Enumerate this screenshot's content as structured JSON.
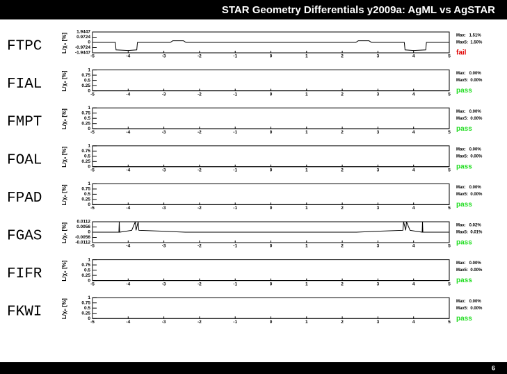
{
  "header": {
    "title": "STAR Geometry Differentials y2009a: AgML vs AgSTAR",
    "page": "6"
  },
  "chart_data": [
    {
      "type": "line",
      "title": "FTPC",
      "ylabel": "L/χ₀ [%]",
      "color": "#000000",
      "x": [
        -5,
        -4.36,
        -4.34,
        -4.0,
        -3.76,
        -3.74,
        -2.82,
        -2.75,
        -2.65,
        -2.55,
        -2.45,
        -2.38,
        2.38,
        2.45,
        2.55,
        2.65,
        2.75,
        2.82,
        3.74,
        3.76,
        4.0,
        4.34,
        4.36,
        5
      ],
      "values": [
        0,
        0,
        -1.4,
        -1.5,
        -1.4,
        0,
        0,
        0.3,
        0.3,
        0.3,
        0.3,
        0,
        0,
        0.3,
        0.3,
        0.3,
        0.3,
        0,
        0,
        -1.4,
        -1.5,
        -1.4,
        0,
        0
      ],
      "xlim": [
        -5,
        5
      ],
      "xticks": [
        -5,
        -4,
        -3,
        -2,
        -1,
        0,
        1,
        2,
        3,
        4,
        5
      ],
      "ylim": [
        -1.9447,
        1.9447
      ],
      "yticks": [
        -1.9447,
        -0.9724,
        0,
        0.9724,
        1.9447
      ],
      "max_text": "Max:   1.51%",
      "max5_text": "Max5:  1.50%",
      "status": "fail",
      "status_color": "#e00000"
    },
    {
      "type": "line",
      "title": "FIAL",
      "ylabel": "L/χ₀ [%]",
      "color": "#000000",
      "x": [
        -5,
        5
      ],
      "values": [
        0,
        0
      ],
      "xlim": [
        -5,
        5
      ],
      "xticks": [
        -5,
        -4,
        -3,
        -2,
        -1,
        0,
        1,
        2,
        3,
        4,
        5
      ],
      "ylim": [
        0,
        1
      ],
      "yticks": [
        0,
        0.25,
        0.5,
        0.75,
        1
      ],
      "max_text": "Max:   0.00%",
      "max5_text": "Max5:  0.00%",
      "status": "pass",
      "status_color": "#22dd22"
    },
    {
      "type": "line",
      "title": "FMPT",
      "ylabel": "L/χ₀ [%]",
      "color": "#000000",
      "x": [
        -5,
        5
      ],
      "values": [
        0,
        0
      ],
      "xlim": [
        -5,
        5
      ],
      "xticks": [
        -5,
        -4,
        -3,
        -2,
        -1,
        0,
        1,
        2,
        3,
        4,
        5
      ],
      "ylim": [
        0,
        1
      ],
      "yticks": [
        0,
        0.25,
        0.5,
        0.75,
        1
      ],
      "max_text": "Max:   0.00%",
      "max5_text": "Max5:  0.00%",
      "status": "pass",
      "status_color": "#22dd22"
    },
    {
      "type": "line",
      "title": "FOAL",
      "ylabel": "L/χ₀ [%]",
      "color": "#000000",
      "x": [
        -5,
        5
      ],
      "values": [
        0,
        0
      ],
      "xlim": [
        -5,
        5
      ],
      "xticks": [
        -5,
        -4,
        -3,
        -2,
        -1,
        0,
        1,
        2,
        3,
        4,
        5
      ],
      "ylim": [
        0,
        1
      ],
      "yticks": [
        0,
        0.25,
        0.5,
        0.75,
        1
      ],
      "max_text": "Max:   0.00%",
      "max5_text": "Max5:  0.00%",
      "status": "pass",
      "status_color": "#22dd22"
    },
    {
      "type": "line",
      "title": "FPAD",
      "ylabel": "L/χ₀ [%]",
      "color": "#000000",
      "x": [
        -5,
        5
      ],
      "values": [
        0,
        0
      ],
      "xlim": [
        -5,
        5
      ],
      "xticks": [
        -5,
        -4,
        -3,
        -2,
        -1,
        0,
        1,
        2,
        3,
        4,
        5
      ],
      "ylim": [
        0,
        1
      ],
      "yticks": [
        0,
        0.25,
        0.5,
        0.75,
        1
      ],
      "max_text": "Max:   0.00%",
      "max5_text": "Max5:  0.00%",
      "status": "pass",
      "status_color": "#22dd22"
    },
    {
      "type": "line",
      "title": "FGAS",
      "ylabel": "L/χ₀ [%]",
      "color": "#000000",
      "x": [
        -5,
        -4.26,
        -4.25,
        -4.24,
        -3.9,
        -3.8,
        -3.78,
        -3.72,
        -3.7,
        -3.0,
        -2.4,
        2.4,
        3.0,
        3.7,
        3.72,
        3.78,
        3.8,
        3.9,
        4.24,
        4.25,
        4.26,
        5
      ],
      "values": [
        0,
        0,
        0.0112,
        0,
        0.002,
        0.0112,
        0.002,
        0.0112,
        0.002,
        0.001,
        0,
        0,
        0.001,
        0.002,
        0.0112,
        0.002,
        0.0112,
        0.002,
        0,
        0.0112,
        0,
        0
      ],
      "xlim": [
        -5,
        5
      ],
      "xticks": [
        -5,
        -4,
        -3,
        -2,
        -1,
        0,
        1,
        2,
        3,
        4,
        5
      ],
      "ylim": [
        -0.0112,
        0.0112
      ],
      "yticks": [
        -0.0112,
        -0.0056,
        0,
        0.0056,
        0.0112
      ],
      "max_text": "Max:   0.02%",
      "max5_text": "Max5:  0.01%",
      "status": "pass",
      "status_color": "#22dd22"
    },
    {
      "type": "line",
      "title": "FIFR",
      "ylabel": "L/χ₀ [%]",
      "color": "#000000",
      "x": [
        -5,
        5
      ],
      "values": [
        0,
        0
      ],
      "xlim": [
        -5,
        5
      ],
      "xticks": [
        -5,
        -4,
        -3,
        -2,
        -1,
        0,
        1,
        2,
        3,
        4,
        5
      ],
      "ylim": [
        0,
        1
      ],
      "yticks": [
        0,
        0.25,
        0.5,
        0.75,
        1
      ],
      "max_text": "Max:   0.00%",
      "max5_text": "Max5:  0.00%",
      "status": "pass",
      "status_color": "#22dd22"
    },
    {
      "type": "line",
      "title": "FKWI",
      "ylabel": "L/χ₀ [%]",
      "color": "#000000",
      "x": [
        -5,
        5
      ],
      "values": [
        0,
        0
      ],
      "xlim": [
        -5,
        5
      ],
      "xticks": [
        -5,
        -4,
        -3,
        -2,
        -1,
        0,
        1,
        2,
        3,
        4,
        5
      ],
      "ylim": [
        0,
        1
      ],
      "yticks": [
        0,
        0.25,
        0.5,
        0.75,
        1
      ],
      "max_text": "Max:   0.00%",
      "max5_text": "Max5:  0.00%",
      "status": "pass",
      "status_color": "#22dd22"
    }
  ]
}
